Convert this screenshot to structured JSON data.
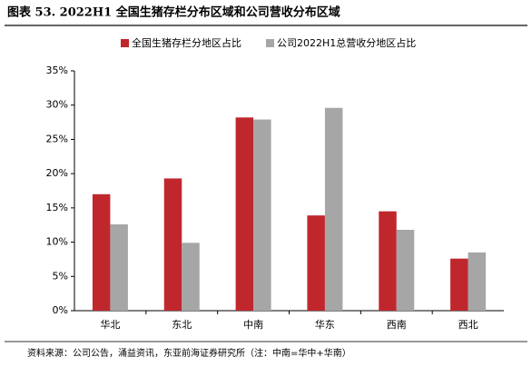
{
  "chart_data": {
    "type": "bar",
    "title": "图表 53. 2022H1 全国生猪存栏分布区域和公司营收分布区域",
    "source": "资料来源：公司公告，涌益资讯，东亚前海证券研究所（注：中南=华中+华南）",
    "categories": [
      "华北",
      "东北",
      "中南",
      "华东",
      "西南",
      "西北"
    ],
    "series": [
      {
        "name": "全国生猪存栏分地区占比",
        "color": "#c0272d",
        "values": [
          17,
          19.3,
          28.2,
          13.9,
          14.5,
          7.6
        ]
      },
      {
        "name": "公司2022H1总营收分地区占比",
        "color": "#a6a6a6",
        "values": [
          12.6,
          9.9,
          27.9,
          29.6,
          11.8,
          8.5
        ]
      }
    ],
    "ylim": [
      0,
      35
    ],
    "yticks": [
      {
        "value": 0,
        "label": "0%"
      },
      {
        "value": 5,
        "label": "5%"
      },
      {
        "value": 10,
        "label": "10%"
      },
      {
        "value": 15,
        "label": "15%"
      },
      {
        "value": 20,
        "label": "20%"
      },
      {
        "value": 25,
        "label": "25%"
      },
      {
        "value": 30,
        "label": "30%"
      },
      {
        "value": 35,
        "label": "35%"
      }
    ],
    "grid": false
  }
}
